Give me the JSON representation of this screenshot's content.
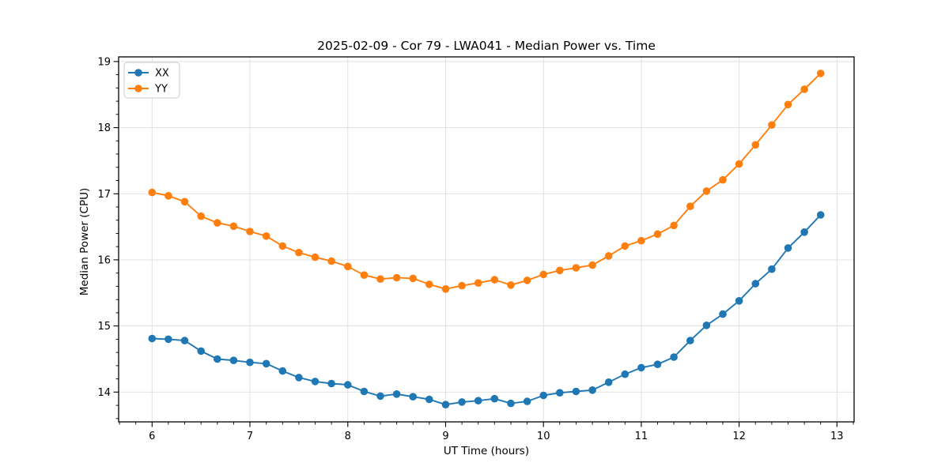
{
  "chart_data": {
    "type": "line",
    "title": "2025-02-09 - Cor 79 - LWA041 - Median Power vs. Time",
    "xlabel": "UT Time (hours)",
    "ylabel": "Median Power (CPU)",
    "xlim": [
      5.658,
      13.175
    ],
    "ylim": [
      13.55,
      19.07
    ],
    "x_ticks": [
      6,
      7,
      8,
      9,
      10,
      11,
      12,
      13
    ],
    "y_ticks": [
      14,
      15,
      16,
      17,
      18,
      19
    ],
    "x_minor_step": 0.16667,
    "y_minor_step": 0.2,
    "grid": "major",
    "legend": {
      "position": "upper-left",
      "entries": [
        "XX",
        "YY"
      ]
    },
    "x": [
      6.0,
      6.1667,
      6.3333,
      6.5,
      6.6667,
      6.8333,
      7.0,
      7.1667,
      7.3333,
      7.5,
      7.6667,
      7.8333,
      8.0,
      8.1667,
      8.3333,
      8.5,
      8.6667,
      8.8333,
      9.0,
      9.1667,
      9.3333,
      9.5,
      9.6667,
      9.8333,
      10.0,
      10.1667,
      10.3333,
      10.5,
      10.6667,
      10.8333,
      11.0,
      11.1667,
      11.3333,
      11.5,
      11.6667,
      11.8333,
      12.0,
      12.1667,
      12.3333,
      12.5,
      12.6667,
      12.8333
    ],
    "series": [
      {
        "name": "XX",
        "color": "#1f77b4",
        "marker": "circle",
        "values": [
          14.81,
          14.8,
          14.78,
          14.62,
          14.5,
          14.48,
          14.45,
          14.43,
          14.32,
          14.22,
          14.16,
          14.13,
          14.11,
          14.01,
          13.94,
          13.97,
          13.93,
          13.89,
          13.81,
          13.85,
          13.87,
          13.9,
          13.83,
          13.86,
          13.95,
          13.99,
          14.01,
          14.03,
          14.15,
          14.27,
          14.37,
          14.42,
          14.53,
          14.78,
          15.01,
          15.18,
          15.38,
          15.64,
          15.86,
          16.18,
          16.42,
          16.68
        ]
      },
      {
        "name": "YY",
        "color": "#ff7f0e",
        "marker": "circle",
        "values": [
          17.02,
          16.97,
          16.88,
          16.66,
          16.56,
          16.51,
          16.43,
          16.36,
          16.21,
          16.11,
          16.04,
          15.98,
          15.9,
          15.77,
          15.71,
          15.73,
          15.72,
          15.63,
          15.56,
          15.61,
          15.65,
          15.7,
          15.62,
          15.69,
          15.78,
          15.84,
          15.88,
          15.92,
          16.06,
          16.21,
          16.29,
          16.39,
          16.52,
          16.81,
          17.04,
          17.21,
          17.45,
          17.74,
          18.04,
          18.35,
          18.58,
          18.82
        ]
      }
    ],
    "colors": {
      "grid": "#dddddd",
      "spine": "#000000",
      "background": "#ffffff",
      "blue": "#1f77b4",
      "orange": "#ff7f0e"
    }
  }
}
